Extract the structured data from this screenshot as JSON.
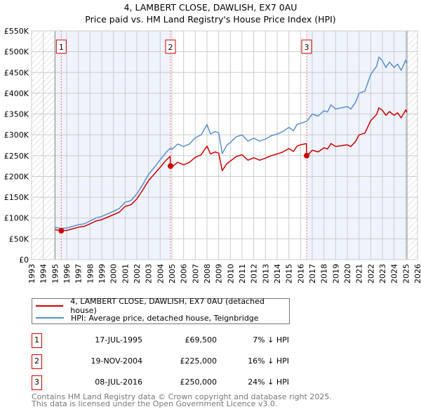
{
  "title": {
    "line1": "4, LAMBERT CLOSE, DAWLISH, EX7 0AU",
    "line2": "Price paid vs. HM Land Registry's House Price Index (HPI)"
  },
  "colors": {
    "price_paid": "#cc0000",
    "hpi": "#5b8fd0",
    "shade": "#eef3fc",
    "marker_box": "#cc0000"
  },
  "chart_data": {
    "type": "line",
    "title": "Price paid vs. HM Land Registry's House Price Index (HPI)",
    "xlim": [
      1993,
      2026
    ],
    "ylim": [
      0,
      550000
    ],
    "grid": true,
    "x_ticks": [
      "1993",
      "1994",
      "1995",
      "1996",
      "1997",
      "1998",
      "1999",
      "2000",
      "2001",
      "2002",
      "2003",
      "2004",
      "2005",
      "2006",
      "2007",
      "2008",
      "2009",
      "2010",
      "2011",
      "2012",
      "2013",
      "2014",
      "2015",
      "2016",
      "2017",
      "2018",
      "2019",
      "2020",
      "2021",
      "2022",
      "2023",
      "2024",
      "2025",
      "2026"
    ],
    "y_ticks": [
      {
        "value": 0,
        "label": "£0"
      },
      {
        "value": 50000,
        "label": "£50K"
      },
      {
        "value": 100000,
        "label": "£100K"
      },
      {
        "value": 150000,
        "label": "£150K"
      },
      {
        "value": 200000,
        "label": "£200K"
      },
      {
        "value": 250000,
        "label": "£250K"
      },
      {
        "value": 300000,
        "label": "£300K"
      },
      {
        "value": 350000,
        "label": "£350K"
      },
      {
        "value": 400000,
        "label": "£400K"
      },
      {
        "value": 450000,
        "label": "£450K"
      },
      {
        "value": 500000,
        "label": "£500K"
      },
      {
        "value": 550000,
        "label": "£550K"
      }
    ],
    "hatched_ranges": [
      [
        1993,
        1995.0
      ],
      [
        2025.1,
        2026
      ]
    ],
    "shaded_ranges": [
      [
        1995.0,
        2004.88
      ],
      [
        2016.52,
        2025.1
      ]
    ],
    "series": [
      {
        "name": "4, LAMBERT CLOSE, DAWLISH, EX7 0AU (detached house)",
        "color": "#cc0000",
        "x": [
          1995.0,
          1995.5,
          1996,
          1996.5,
          1997,
          1997.5,
          1998,
          1998.5,
          1999,
          1999.5,
          2000,
          2000.5,
          2001,
          2001.5,
          2002,
          2002.5,
          2003,
          2003.5,
          2004,
          2004.5,
          2004.85,
          2004.88,
          2005,
          2005.5,
          2006,
          2006.5,
          2007,
          2007.5,
          2008,
          2008.3,
          2008.7,
          2009,
          2009.3,
          2009.7,
          2010,
          2010.5,
          2011,
          2011.5,
          2012,
          2012.5,
          2013,
          2013.5,
          2014,
          2014.5,
          2015,
          2015.4,
          2015.7,
          2016,
          2016.5,
          2016.52,
          2016.6,
          2017,
          2017.5,
          2018,
          2018.3,
          2018.6,
          2019,
          2019.5,
          2020,
          2020.3,
          2020.7,
          2021,
          2021.5,
          2022,
          2022.5,
          2022.7,
          2023,
          2023.3,
          2023.6,
          2024,
          2024.3,
          2024.6,
          2025,
          2025.1
        ],
        "y": [
          72000,
          70000,
          70000,
          74000,
          78000,
          80000,
          86000,
          93000,
          96000,
          102000,
          108000,
          114000,
          128000,
          132000,
          146000,
          167000,
          190000,
          206000,
          222000,
          239000,
          248000,
          225000,
          223000,
          234000,
          228000,
          234000,
          246000,
          252000,
          273000,
          254000,
          259000,
          256000,
          214000,
          231000,
          237000,
          248000,
          252000,
          239000,
          245000,
          239000,
          244000,
          250000,
          254000,
          259000,
          267000,
          260000,
          273000,
          276000,
          279000,
          250000,
          251000,
          263000,
          259000,
          269000,
          266000,
          279000,
          272000,
          274000,
          276000,
          272000,
          284000,
          300000,
          304000,
          334000,
          349000,
          365000,
          359000,
          347000,
          356000,
          347000,
          353000,
          341000,
          360000,
          354000
        ]
      },
      {
        "name": "HPI: Average price, detached house, Teignbridge",
        "color": "#5b8fd0",
        "x": [
          1995.0,
          1995.5,
          1996,
          1996.5,
          1997,
          1997.5,
          1998,
          1998.5,
          1999,
          1999.5,
          2000,
          2000.5,
          2001,
          2001.5,
          2002,
          2002.5,
          2003,
          2003.5,
          2004,
          2004.5,
          2004.88,
          2005,
          2005.5,
          2006,
          2006.5,
          2007,
          2007.5,
          2008,
          2008.3,
          2008.7,
          2009,
          2009.3,
          2009.7,
          2010,
          2010.5,
          2011,
          2011.5,
          2012,
          2012.5,
          2013,
          2013.5,
          2014,
          2014.5,
          2015,
          2015.4,
          2015.7,
          2016,
          2016.5,
          2016.6,
          2017,
          2017.5,
          2018,
          2018.3,
          2018.6,
          2019,
          2019.5,
          2020,
          2020.3,
          2020.7,
          2021,
          2021.5,
          2022,
          2022.5,
          2022.7,
          2023,
          2023.3,
          2023.6,
          2024,
          2024.3,
          2024.6,
          2025,
          2025.1
        ],
        "y": [
          78000,
          75000,
          76000,
          80000,
          84000,
          86000,
          93000,
          100000,
          104000,
          110000,
          116000,
          123000,
          138000,
          142000,
          158000,
          180000,
          205000,
          222000,
          240000,
          258000,
          268000,
          265000,
          278000,
          272000,
          278000,
          293000,
          300000,
          325000,
          302000,
          308000,
          305000,
          255000,
          275000,
          282000,
          295000,
          300000,
          285000,
          292000,
          285000,
          290000,
          298000,
          302000,
          308000,
          318000,
          310000,
          325000,
          328000,
          332000,
          335000,
          350000,
          345000,
          358000,
          355000,
          372000,
          362000,
          365000,
          368000,
          362000,
          378000,
          400000,
          405000,
          445000,
          465000,
          487000,
          478000,
          462000,
          475000,
          462000,
          470000,
          455000,
          480000,
          472000
        ]
      }
    ],
    "sales": [
      {
        "id": "1",
        "x": 1995.54,
        "price": 69500,
        "date": "17-JUL-1995",
        "price_label": "£69,500",
        "hpi_diff": "7% ↓ HPI"
      },
      {
        "id": "2",
        "x": 2004.88,
        "price": 225000,
        "date": "19-NOV-2004",
        "price_label": "£225,000",
        "hpi_diff": "16% ↓ HPI"
      },
      {
        "id": "3",
        "x": 2016.52,
        "price": 250000,
        "date": "08-JUL-2016",
        "price_label": "£250,000",
        "hpi_diff": "24% ↓ HPI"
      }
    ]
  },
  "legend": {
    "price_paid": "4, LAMBERT CLOSE, DAWLISH, EX7 0AU (detached house)",
    "hpi": "HPI: Average price, detached house, Teignbridge"
  },
  "footer": {
    "line1": "Contains HM Land Registry data © Crown copyright and database right 2025.",
    "line2": "This data is licensed under the Open Government Licence v3.0."
  }
}
